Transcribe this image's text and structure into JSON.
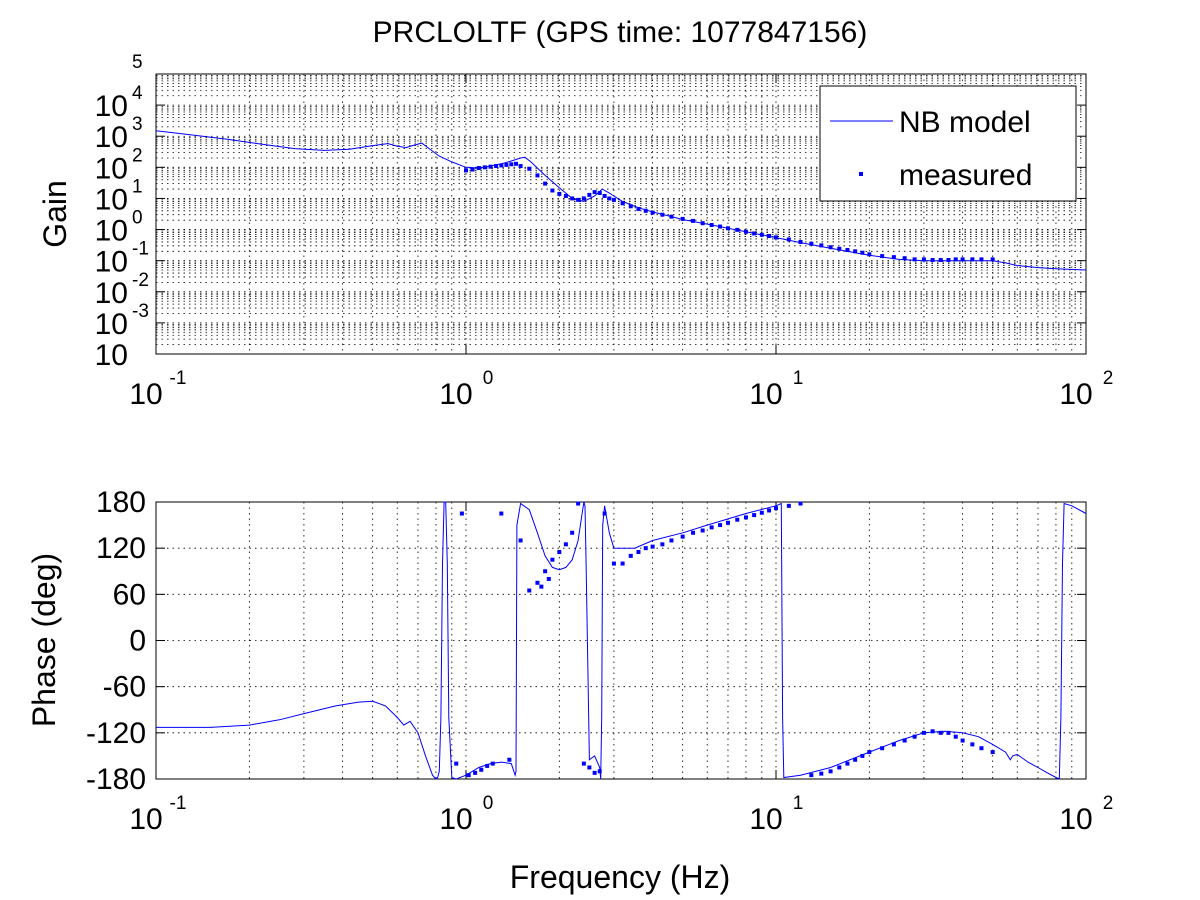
{
  "chart_data": [
    {
      "type": "line",
      "title": "PRCLOLTF (GPS time: 1077847156)",
      "ylabel": "Gain",
      "xlabel": "",
      "xscale": "log",
      "yscale": "log",
      "xlim": [
        0.1,
        100
      ],
      "ylim": [
        0.0001,
        100000
      ],
      "x_ticks": [
        {
          "base": "10",
          "exp": "-1",
          "value": 0.1
        },
        {
          "base": "10",
          "exp": "0",
          "value": 1
        },
        {
          "base": "10",
          "exp": "1",
          "value": 10
        },
        {
          "base": "10",
          "exp": "2",
          "value": 100
        }
      ],
      "y_ticks": [
        {
          "base": "10",
          "exp": "",
          "value": 0.0001
        },
        {
          "base": "10",
          "exp": "-3",
          "value": 0.001
        },
        {
          "base": "10",
          "exp": "-2",
          "value": 0.01
        },
        {
          "base": "10",
          "exp": "-1",
          "value": 0.1
        },
        {
          "base": "10",
          "exp": "0",
          "value": 1
        },
        {
          "base": "10",
          "exp": "1",
          "value": 10
        },
        {
          "base": "10",
          "exp": "2",
          "value": 100
        },
        {
          "base": "10",
          "exp": "3",
          "value": 1000
        },
        {
          "base": "10",
          "exp": "4",
          "value": 10000
        },
        {
          "base": "",
          "exp": "5",
          "value": 100000
        }
      ],
      "grid": true,
      "legend": {
        "placement": "top-right",
        "entries": [
          {
            "label": "NB model",
            "style": "line"
          },
          {
            "label": "measured",
            "style": "dot"
          }
        ]
      },
      "series": [
        {
          "name": "NB model",
          "color": "#0000ff",
          "style": "line",
          "x": [
            0.1,
            0.13,
            0.17,
            0.22,
            0.28,
            0.35,
            0.42,
            0.5,
            0.56,
            0.6,
            0.64,
            0.68,
            0.72,
            0.76,
            0.82,
            0.9,
            1.0,
            1.1,
            1.2,
            1.3,
            1.4,
            1.5,
            1.55,
            1.62,
            1.8,
            2.0,
            2.2,
            2.4,
            2.6,
            2.75,
            2.9,
            3.2,
            3.6,
            4.0,
            5.0,
            6.0,
            7.0,
            8.0,
            10,
            12,
            15,
            18,
            20,
            25,
            30,
            40,
            50,
            55,
            60,
            70,
            80,
            100
          ],
          "y": [
            1500,
            1100,
            800,
            550,
            400,
            350,
            380,
            500,
            580,
            480,
            430,
            520,
            600,
            400,
            230,
            150,
            100,
            95,
            110,
            130,
            160,
            200,
            210,
            150,
            55,
            22,
            10,
            8,
            12,
            20,
            15,
            8,
            5,
            3.7,
            2.1,
            1.5,
            1.1,
            0.85,
            0.55,
            0.38,
            0.25,
            0.18,
            0.15,
            0.11,
            0.1,
            0.1,
            0.1,
            0.085,
            0.07,
            0.06,
            0.055,
            0.05
          ]
        },
        {
          "name": "measured",
          "color": "#0000ff",
          "style": "dot",
          "x": [
            1.0,
            1.05,
            1.1,
            1.15,
            1.2,
            1.25,
            1.3,
            1.35,
            1.4,
            1.45,
            1.5,
            1.6,
            1.7,
            1.8,
            1.9,
            2.0,
            2.1,
            2.2,
            2.3,
            2.4,
            2.5,
            2.6,
            2.7,
            2.8,
            2.9,
            3.0,
            3.2,
            3.4,
            3.6,
            3.8,
            4.0,
            4.3,
            4.6,
            5.0,
            5.4,
            5.8,
            6.2,
            6.6,
            7.0,
            7.5,
            8.0,
            8.5,
            9.0,
            9.5,
            10,
            11,
            12,
            13,
            14,
            15,
            16,
            17,
            18,
            19,
            20,
            22,
            24,
            26,
            28,
            30,
            32,
            34,
            36,
            38,
            40,
            43,
            46,
            50
          ],
          "y": [
            80,
            85,
            95,
            100,
            105,
            110,
            115,
            120,
            125,
            130,
            110,
            90,
            55,
            30,
            18,
            14,
            12,
            10,
            9,
            10,
            13,
            16,
            15,
            12,
            10,
            9,
            7,
            5.6,
            4.6,
            4.0,
            3.5,
            3.0,
            2.6,
            2.2,
            1.9,
            1.6,
            1.4,
            1.25,
            1.1,
            0.98,
            0.85,
            0.75,
            0.68,
            0.62,
            0.56,
            0.48,
            0.4,
            0.35,
            0.31,
            0.27,
            0.24,
            0.22,
            0.2,
            0.18,
            0.16,
            0.14,
            0.13,
            0.12,
            0.11,
            0.11,
            0.105,
            0.105,
            0.105,
            0.11,
            0.11,
            0.11,
            0.11,
            0.11
          ]
        }
      ]
    },
    {
      "type": "line",
      "title": "",
      "xlabel": "Frequency (Hz)",
      "ylabel": "Phase (deg)",
      "xscale": "log",
      "xlim": [
        0.1,
        100
      ],
      "ylim": [
        -180,
        180
      ],
      "x_ticks": [
        {
          "base": "10",
          "exp": "-1",
          "value": 0.1
        },
        {
          "base": "10",
          "exp": "0",
          "value": 1
        },
        {
          "base": "10",
          "exp": "1",
          "value": 10
        },
        {
          "base": "10",
          "exp": "2",
          "value": 100
        }
      ],
      "y_ticks": [
        {
          "label": "-180",
          "value": -180
        },
        {
          "label": "-120",
          "value": -120
        },
        {
          "label": "-60",
          "value": -60
        },
        {
          "label": "0",
          "value": 0
        },
        {
          "label": "60",
          "value": 60
        },
        {
          "label": "120",
          "value": 120
        },
        {
          "label": "180",
          "value": 180
        }
      ],
      "grid": true,
      "series": [
        {
          "name": "NB model",
          "color": "#0000ff",
          "style": "line",
          "x": [
            0.1,
            0.15,
            0.2,
            0.25,
            0.3,
            0.38,
            0.45,
            0.5,
            0.55,
            0.6,
            0.63,
            0.66,
            0.7,
            0.74,
            0.78,
            0.8,
            0.81,
            0.82,
            0.83,
            0.84,
            0.85,
            0.86,
            0.87,
            0.88,
            0.9,
            0.93,
            1.0,
            1.1,
            1.2,
            1.3,
            1.4,
            1.44,
            1.45,
            1.46,
            1.5,
            1.6,
            1.7,
            1.8,
            1.9,
            2.0,
            2.1,
            2.2,
            2.3,
            2.38,
            2.4,
            2.42,
            2.44,
            2.5,
            2.6,
            2.7,
            2.72,
            2.74,
            2.76,
            2.8,
            2.9,
            3.0,
            3.5,
            4.0,
            5.0,
            6.0,
            8.0,
            10.0,
            10.4,
            10.5,
            10.6,
            12,
            15,
            20,
            25,
            30,
            35,
            40,
            45,
            50,
            55,
            57,
            58,
            60,
            65,
            70,
            75,
            80,
            82,
            83,
            84,
            85,
            90,
            100
          ],
          "y": [
            -113,
            -113,
            -110,
            -103,
            -95,
            -85,
            -80,
            -79,
            -85,
            -100,
            -110,
            -105,
            -120,
            -150,
            -175,
            -180,
            -178,
            -170,
            -100,
            100,
            180,
            180,
            100,
            -100,
            -178,
            -180,
            -175,
            -165,
            -160,
            -158,
            -160,
            -175,
            -170,
            150,
            178,
            170,
            140,
            110,
            95,
            92,
            95,
            105,
            130,
            170,
            180,
            175,
            100,
            -155,
            -150,
            -165,
            -180,
            -100,
            150,
            175,
            140,
            120,
            120,
            130,
            140,
            150,
            165,
            175,
            178,
            -100,
            -178,
            -175,
            -165,
            -145,
            -130,
            -120,
            -118,
            -120,
            -125,
            -135,
            -145,
            -155,
            -150,
            -148,
            -158,
            -165,
            -172,
            -178,
            -180,
            -100,
            100,
            178,
            175,
            165
          ]
        },
        {
          "name": "measured",
          "color": "#0000ff",
          "style": "dot",
          "x": [
            0.93,
            0.97,
            1.02,
            1.07,
            1.12,
            1.17,
            1.22,
            1.3,
            1.38,
            1.5,
            1.6,
            1.7,
            1.75,
            1.8,
            1.85,
            1.9,
            2.0,
            2.1,
            2.2,
            2.3,
            2.4,
            2.5,
            2.6,
            2.7,
            2.8,
            3.0,
            3.2,
            3.4,
            3.6,
            3.8,
            4.0,
            4.3,
            4.6,
            5.0,
            5.4,
            5.8,
            6.2,
            6.6,
            7.0,
            7.5,
            8.0,
            8.5,
            9.0,
            9.5,
            10.0,
            11.0,
            12.0,
            13,
            14,
            15,
            16,
            17,
            18,
            19,
            20,
            22,
            24,
            26,
            28,
            30,
            32,
            34,
            36,
            38,
            40,
            43,
            46,
            50
          ],
          "y": [
            -160,
            165,
            -175,
            -172,
            -168,
            -163,
            -160,
            165,
            -155,
            130,
            65,
            75,
            70,
            90,
            80,
            105,
            115,
            125,
            140,
            178,
            -160,
            -165,
            -172,
            -170,
            165,
            100,
            100,
            110,
            115,
            120,
            122,
            125,
            130,
            135,
            140,
            143,
            147,
            150,
            153,
            157,
            160,
            163,
            166,
            169,
            172,
            175,
            178,
            -175,
            -173,
            -170,
            -165,
            -160,
            -155,
            -150,
            -145,
            -140,
            -135,
            -130,
            -125,
            -120,
            -118,
            -120,
            -120,
            -125,
            -130,
            -135,
            -140,
            -145
          ]
        }
      ]
    }
  ]
}
